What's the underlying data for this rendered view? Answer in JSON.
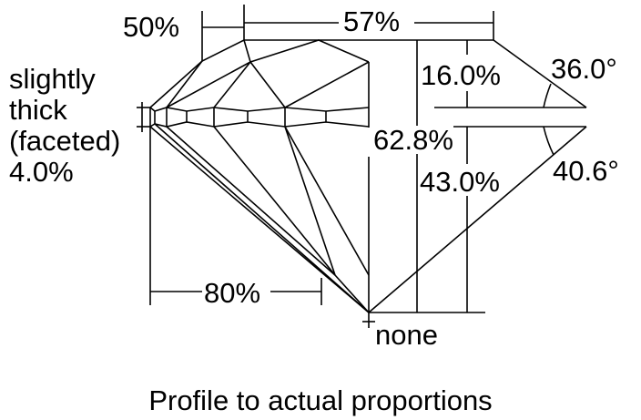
{
  "labels": {
    "crown_height_bar": "50%",
    "table": "57%",
    "girdle_lines": [
      "slightly",
      "thick",
      "(faceted)",
      "4.0%"
    ],
    "crown_height": "16.0%",
    "crown_angle": "36.0°",
    "total_depth": "62.8%",
    "pavilion_depth": "43.0%",
    "pavilion_angle": "40.6°",
    "lower_half": "80%",
    "culet": "none"
  },
  "caption": "Profile to actual proportions",
  "colors": {
    "line": "#000000",
    "background": "#ffffff"
  }
}
